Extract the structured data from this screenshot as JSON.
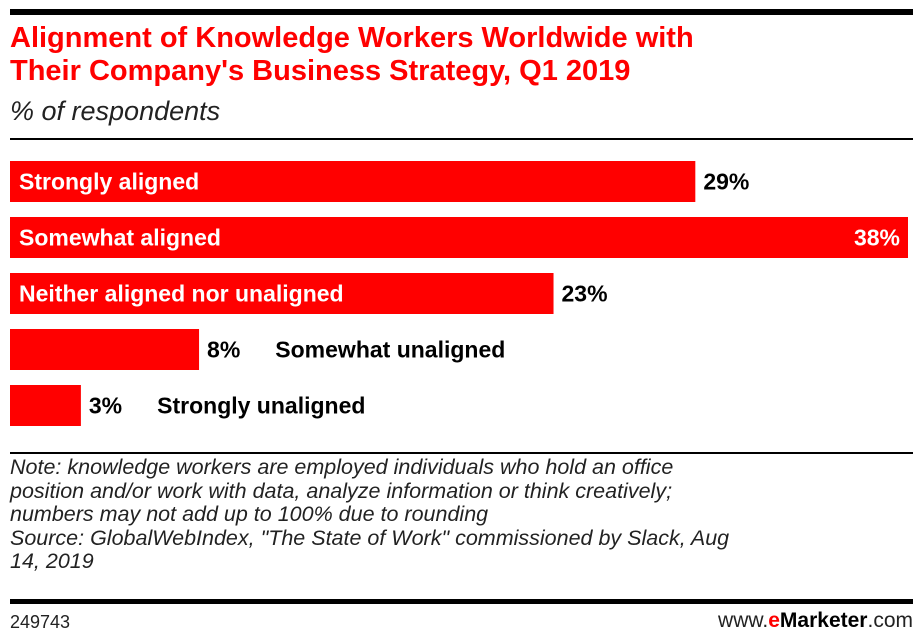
{
  "header": {
    "title_line1": "Alignment of Knowledge Workers Worldwide with",
    "title_line2": "Their Company's Business Strategy, Q1 2019",
    "subtitle": "% of respondents"
  },
  "chart_data": {
    "type": "bar",
    "orientation": "horizontal",
    "title": "Alignment of Knowledge Workers Worldwide with Their Company's Business Strategy, Q1 2019",
    "subtitle": "% of respondents",
    "categories": [
      "Strongly aligned",
      "Somewhat aligned",
      "Neither aligned nor unaligned",
      "Somewhat unaligned",
      "Strongly unaligned"
    ],
    "values": [
      29,
      38,
      23,
      8,
      3
    ],
    "value_labels": [
      "29%",
      "38%",
      "23%",
      "8%",
      "3%"
    ],
    "xlim": [
      0,
      38
    ],
    "bar_color": "#ff0000",
    "grid": false,
    "legend": "none"
  },
  "footer": {
    "note_lines": [
      "Note: knowledge workers are employed individuals who hold an office",
      "position and/or work with data, analyze information or think creatively;",
      "numbers may not add up to 100% due to rounding",
      "Source: GlobalWebIndex, \"The State of Work\" commissioned by Slack, Aug",
      "14, 2019"
    ],
    "chart_id": "249743",
    "brand_prefix": "www.",
    "brand_e": "e",
    "brand_name": "Marketer",
    "brand_suffix": ".com"
  },
  "colors": {
    "accent": "#ff0000",
    "text": "#000000"
  }
}
